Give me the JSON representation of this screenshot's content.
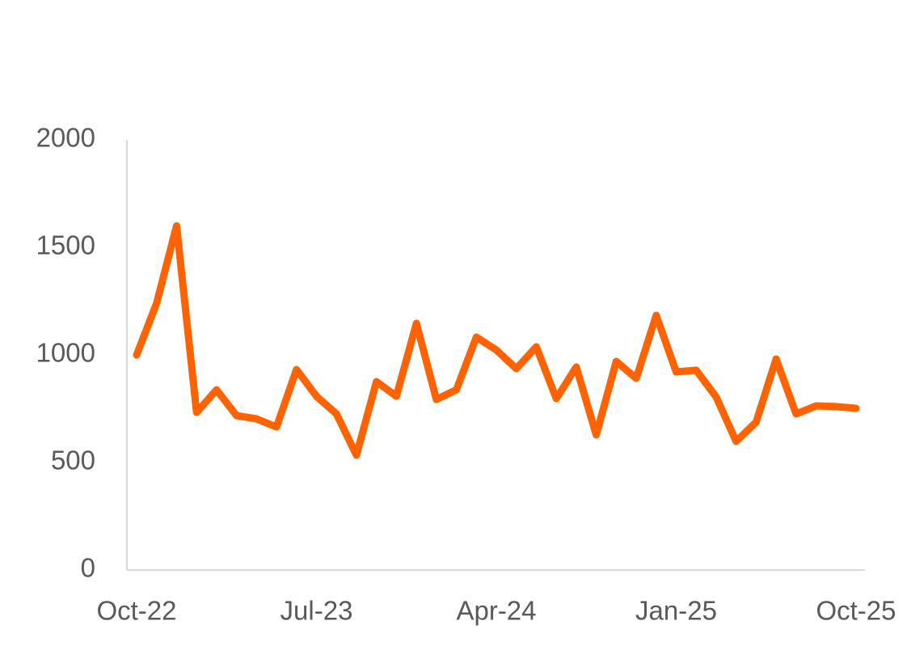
{
  "chart_data": {
    "type": "line",
    "categories": [
      "Oct-22",
      null,
      null,
      null,
      null,
      null,
      null,
      null,
      null,
      "Jul-23",
      null,
      null,
      null,
      null,
      null,
      null,
      null,
      null,
      "Apr-24",
      null,
      null,
      null,
      null,
      null,
      null,
      null,
      null,
      "Jan-25",
      null,
      null,
      null,
      null,
      null,
      null,
      null,
      null,
      "Oct-25"
    ],
    "values": [
      1000,
      1240,
      1600,
      733,
      838,
      718,
      703,
      665,
      932,
      808,
      726,
      534,
      876,
      808,
      1147,
      793,
      838,
      1083,
      1023,
      936,
      1038,
      797,
      944,
      628,
      970,
      891,
      1184,
      921,
      929,
      805,
      598,
      688,
      981,
      726,
      763,
      760,
      752
    ],
    "color": "#ff6200",
    "ylim": [
      0,
      2000
    ],
    "yticks": [
      0,
      500,
      1000,
      1500,
      2000
    ],
    "grid": false
  }
}
